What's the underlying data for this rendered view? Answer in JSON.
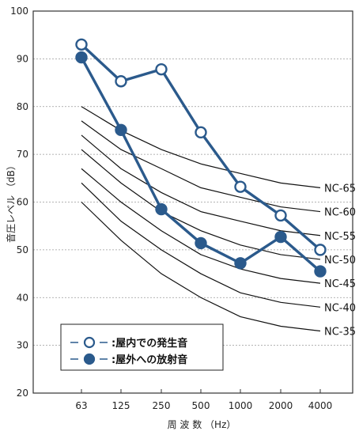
{
  "chart_data": {
    "type": "line",
    "x_categories": [
      "63",
      "125",
      "250",
      "500",
      "1000",
      "2000",
      "4000"
    ],
    "xlabel": "周 波 数 （Hz）",
    "ylabel": "音圧レベル （dB）",
    "ylim": [
      20,
      100
    ],
    "yticks": [
      "20",
      "30",
      "40",
      "50",
      "60",
      "70",
      "80",
      "90",
      "100"
    ],
    "grid": "horizontal",
    "series": [
      {
        "name": "屋内での発生音",
        "marker": "open-circle",
        "color": "#2b5a8c",
        "values": [
          93,
          85.3,
          87.8,
          74.6,
          63.2,
          57.2,
          50
        ]
      },
      {
        "name": "屋外への放射音",
        "marker": "filled-circle",
        "color": "#2b5a8c",
        "values": [
          90.3,
          75.1,
          58.5,
          51.4,
          47.2,
          52.7,
          45.5
        ]
      }
    ],
    "nc_curves": [
      {
        "label": "NC-65",
        "values": [
          80,
          75,
          71,
          68,
          66,
          64,
          63
        ]
      },
      {
        "label": "NC-60",
        "values": [
          77,
          71,
          67,
          63,
          61,
          59,
          58
        ]
      },
      {
        "label": "NC-55",
        "values": [
          74,
          67,
          62,
          58,
          56,
          54,
          53
        ]
      },
      {
        "label": "NC-50",
        "values": [
          71,
          64,
          58,
          54,
          51,
          49,
          48
        ]
      },
      {
        "label": "NC-45",
        "values": [
          67,
          60,
          54,
          49,
          46,
          44,
          43
        ]
      },
      {
        "label": "NC-40",
        "values": [
          64,
          56,
          50,
          45,
          41,
          39,
          38
        ]
      },
      {
        "label": "NC-35",
        "values": [
          60,
          52,
          45,
          40,
          36,
          34,
          33
        ]
      }
    ],
    "legend": {
      "position": "bottom-left",
      "items": [
        {
          "label": "－○－：屋内での発生音"
        },
        {
          "label": "－●－：屋外への放射音"
        }
      ]
    }
  }
}
